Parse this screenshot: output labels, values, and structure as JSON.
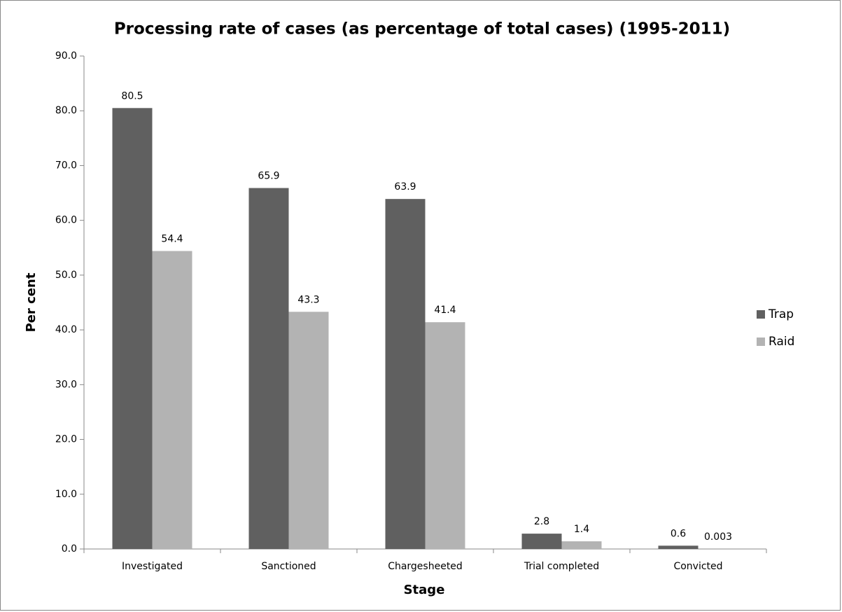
{
  "chart_data": {
    "type": "bar",
    "title": "Processing rate of cases (as percentage of total cases) (1995-2011)",
    "x_label": "Stage",
    "y_label": "Per cent",
    "categories": [
      "Investigated",
      "Sanctioned",
      "Chargesheeted",
      "Trial completed",
      "Convicted"
    ],
    "series": [
      {
        "name": "Trap",
        "color": "#606060",
        "values": [
          80.5,
          65.9,
          63.9,
          2.8,
          0.6
        ]
      },
      {
        "name": "Raid",
        "color": "#b3b3b3",
        "values": [
          54.4,
          43.3,
          41.4,
          1.4,
          0.003
        ]
      }
    ],
    "ylim": [
      0,
      90
    ],
    "yticks": [
      {
        "value": 0,
        "label": "0.0"
      },
      {
        "value": 10,
        "label": "10.0"
      },
      {
        "value": 20,
        "label": "20.0"
      },
      {
        "value": 30,
        "label": "30.0"
      },
      {
        "value": 40,
        "label": "40.0"
      },
      {
        "value": 50,
        "label": "50.0"
      },
      {
        "value": 60,
        "label": "60.0"
      },
      {
        "value": 70,
        "label": "70.0"
      },
      {
        "value": 80,
        "label": "80.0"
      },
      {
        "value": 90,
        "label": "90.0"
      }
    ],
    "legend": "right",
    "grid": false
  }
}
